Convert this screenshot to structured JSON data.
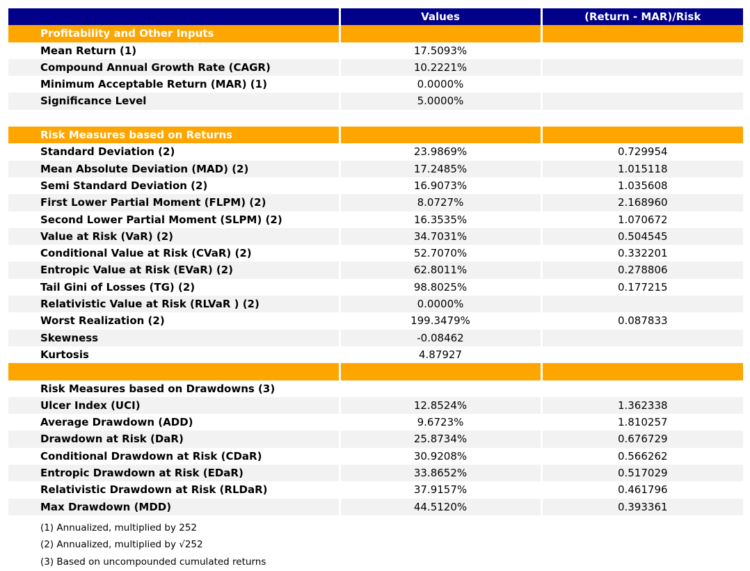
{
  "report": {
    "columns": {
      "metric": "",
      "values": "Values",
      "ratio": "(Return - MAR)/Risk"
    },
    "rows": [
      {
        "type": "section",
        "label": "Profitability and Other Inputs",
        "values": "",
        "ratio": ""
      },
      {
        "type": "data",
        "label": "Mean Return (1)",
        "values": "17.5093%",
        "ratio": ""
      },
      {
        "type": "data",
        "label": "Compound Annual Growth Rate (CAGR)",
        "values": "10.2221%",
        "ratio": ""
      },
      {
        "type": "data",
        "label": "Minimum Acceptable Return (MAR) (1)",
        "values": "0.0000%",
        "ratio": ""
      },
      {
        "type": "data",
        "label": "Significance Level",
        "values": "5.0000%",
        "ratio": ""
      },
      {
        "type": "spacer",
        "label": "",
        "values": "",
        "ratio": ""
      },
      {
        "type": "section",
        "label": "Risk Measures based on Returns",
        "values": "",
        "ratio": ""
      },
      {
        "type": "data",
        "label": "Standard Deviation (2)",
        "values": "23.9869%",
        "ratio": "0.729954"
      },
      {
        "type": "data",
        "label": "Mean Absolute Deviation (MAD) (2)",
        "values": "17.2485%",
        "ratio": "1.015118"
      },
      {
        "type": "data",
        "label": "Semi Standard Deviation (2)",
        "values": "16.9073%",
        "ratio": "1.035608"
      },
      {
        "type": "data",
        "label": "First Lower Partial Moment (FLPM) (2)",
        "values": "8.0727%",
        "ratio": "2.168960"
      },
      {
        "type": "data",
        "label": "Second Lower Partial Moment (SLPM) (2)",
        "values": "16.3535%",
        "ratio": "1.070672"
      },
      {
        "type": "data",
        "label": "Value at Risk (VaR) (2)",
        "values": "34.7031%",
        "ratio": "0.504545"
      },
      {
        "type": "data",
        "label": "Conditional Value at Risk (CVaR) (2)",
        "values": "52.7070%",
        "ratio": "0.332201"
      },
      {
        "type": "data",
        "label": "Entropic Value at Risk (EVaR) (2)",
        "values": "62.8011%",
        "ratio": "0.278806"
      },
      {
        "type": "data",
        "label": "Tail Gini of Losses (TG) (2)",
        "values": "98.8025%",
        "ratio": "0.177215"
      },
      {
        "type": "data",
        "label": "Relativistic Value at Risk (RLVaR ) (2)",
        "values": "0.0000%",
        "ratio": ""
      },
      {
        "type": "data",
        "label": "Worst Realization (2)",
        "values": "199.3479%",
        "ratio": "0.087833"
      },
      {
        "type": "data",
        "label": "Skewness",
        "values": "-0.08462",
        "ratio": ""
      },
      {
        "type": "data",
        "label": "Kurtosis",
        "values": "4.87927",
        "ratio": ""
      },
      {
        "type": "section",
        "label": "",
        "values": "",
        "ratio": ""
      },
      {
        "type": "subheader",
        "label": "Risk Measures based on Drawdowns (3)",
        "values": "",
        "ratio": ""
      },
      {
        "type": "data",
        "label": "Ulcer Index (UCI)",
        "values": "12.8524%",
        "ratio": "1.362338"
      },
      {
        "type": "data",
        "label": "Average Drawdown (ADD)",
        "values": "9.6723%",
        "ratio": "1.810257"
      },
      {
        "type": "data",
        "label": "Drawdown at Risk (DaR)",
        "values": "25.8734%",
        "ratio": "0.676729"
      },
      {
        "type": "data",
        "label": "Conditional Drawdown at Risk (CDaR)",
        "values": "30.9208%",
        "ratio": "0.566262"
      },
      {
        "type": "data",
        "label": "Entropic Drawdown at Risk (EDaR)",
        "values": "33.8652%",
        "ratio": "0.517029"
      },
      {
        "type": "data",
        "label": "Relativistic Drawdown at Risk (RLDaR)",
        "values": "37.9157%",
        "ratio": "0.461796"
      },
      {
        "type": "data",
        "label": "Max Drawdown (MDD)",
        "values": "44.5120%",
        "ratio": "0.393361"
      }
    ],
    "footnotes": [
      "(1) Annualized, multiplied by 252",
      "(2) Annualized, multiplied by √252",
      "(3) Based on uncompounded cumulated returns"
    ]
  },
  "colors": {
    "header_bg": "#00008B",
    "section_bg": "#FFA500",
    "stripe_bg": "#F2F2F2",
    "header_text": "#FFFFFF",
    "body_text": "#000000"
  }
}
